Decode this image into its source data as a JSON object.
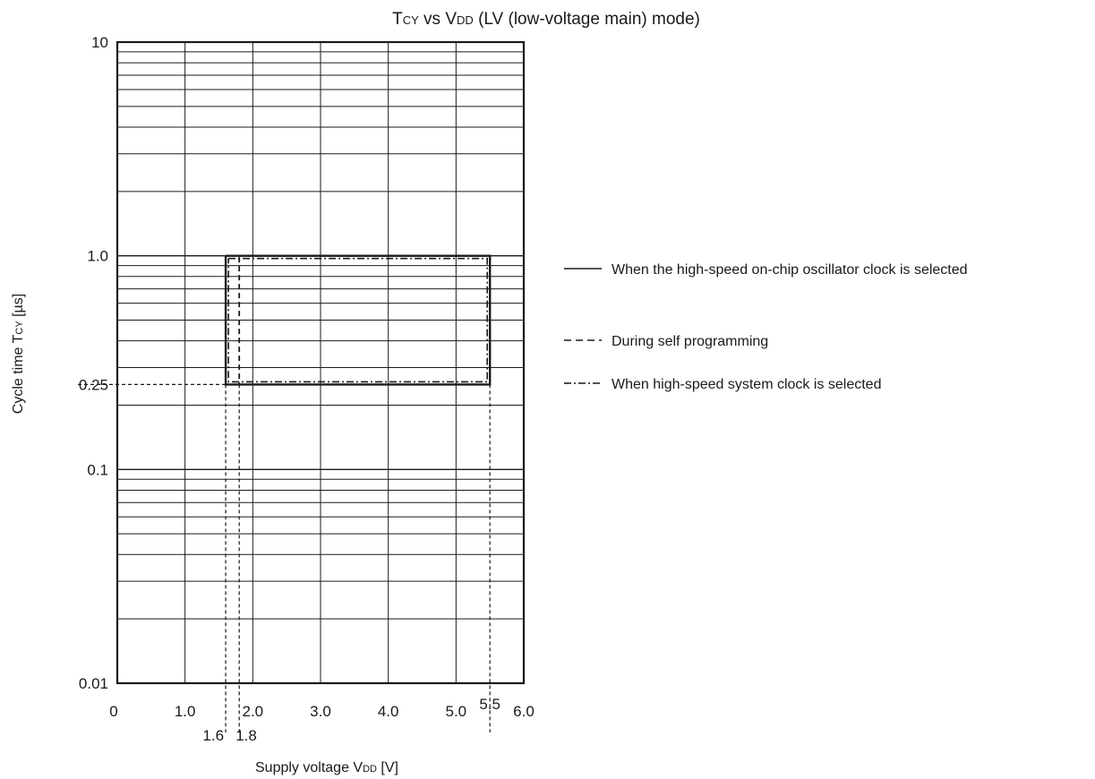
{
  "chart_data": {
    "type": "line",
    "title": {
      "parts": [
        {
          "text": "T",
          "small": false
        },
        {
          "text": "CY",
          "small": true
        },
        {
          "text": " vs V",
          "small": false
        },
        {
          "text": "DD",
          "small": true
        },
        {
          "text": " (LV (low-voltage main) mode)",
          "small": false
        }
      ]
    },
    "xlabel": {
      "parts": [
        {
          "text": "Supply voltage V",
          "small": false
        },
        {
          "text": "DD",
          "small": true
        },
        {
          "text": " [V]",
          "small": false
        }
      ]
    },
    "ylabel": {
      "parts": [
        {
          "text": "Cycle time T",
          "small": false
        },
        {
          "text": "CY",
          "small": true
        },
        {
          "text": " [µs]",
          "small": false
        }
      ]
    },
    "xlim": [
      0,
      6
    ],
    "ylim": [
      0.01,
      10
    ],
    "yscale": "log",
    "grid": true,
    "x_ticks": [
      {
        "value": 0,
        "label": "0"
      },
      {
        "value": 1,
        "label": "1.0"
      },
      {
        "value": 2,
        "label": "2.0"
      },
      {
        "value": 3,
        "label": "3.0"
      },
      {
        "value": 4,
        "label": "4.0"
      },
      {
        "value": 5,
        "label": "5.0"
      },
      {
        "value": 6,
        "label": "6.0"
      }
    ],
    "x_extra_ticks": [
      {
        "value": 1.6,
        "label": "1.6"
      },
      {
        "value": 1.8,
        "label": "1.8"
      },
      {
        "value": 5.5,
        "label": "5.5"
      }
    ],
    "y_ticks": [
      {
        "value": 10,
        "label": "10"
      },
      {
        "value": 1,
        "label": "1.0"
      },
      {
        "value": 0.25,
        "label": "0.25"
      },
      {
        "value": 0.1,
        "label": "0.1"
      },
      {
        "value": 0.01,
        "label": "0.01"
      }
    ],
    "series": [
      {
        "name": "When the high-speed on-chip oscillator clock is selected",
        "style": "solid",
        "x": [
          1.6,
          5.5,
          5.5,
          1.6,
          1.6
        ],
        "y": [
          1.0,
          1.0,
          0.25,
          0.25,
          1.0
        ]
      },
      {
        "name": "During self programming",
        "style": "dashed",
        "x": [
          1.8,
          5.5,
          5.5,
          1.8,
          1.8
        ],
        "y": [
          1.0,
          1.0,
          0.25,
          0.25,
          1.0
        ]
      },
      {
        "name": "When high-speed system clock is selected",
        "style": "dashdot",
        "x": [
          1.6,
          5.5,
          5.5,
          1.6,
          1.6
        ],
        "y": [
          1.0,
          1.0,
          0.25,
          0.25,
          1.0
        ]
      }
    ],
    "reference_lines": [
      {
        "axis": "y",
        "value": 0.25
      },
      {
        "axis": "x",
        "value": 1.6
      },
      {
        "axis": "x",
        "value": 1.8
      },
      {
        "axis": "x",
        "value": 5.5
      }
    ],
    "legend_position": "right",
    "colors": {
      "line": "#1a1a1a",
      "grid": "#1a1a1a"
    }
  }
}
